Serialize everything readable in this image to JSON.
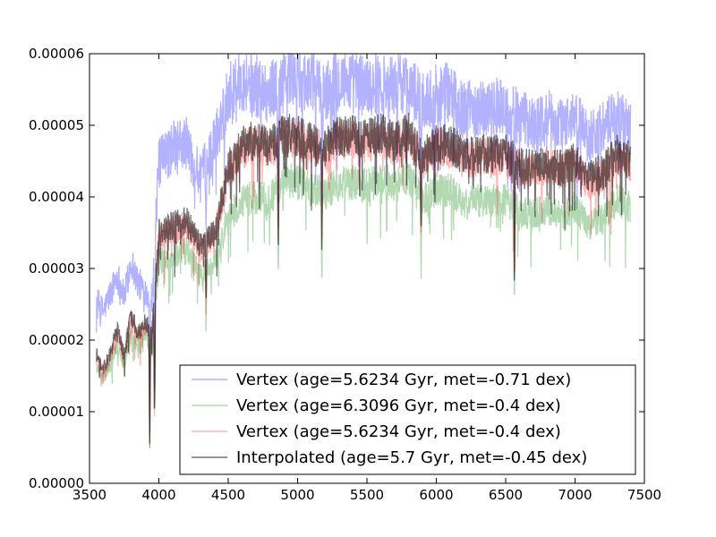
{
  "chart_data": {
    "type": "line",
    "title": "",
    "xlabel": "",
    "ylabel": "",
    "xlim": [
      3500,
      7500
    ],
    "ylim": [
      0,
      6e-05
    ],
    "x_ticks": [
      3500,
      4000,
      4500,
      5000,
      5500,
      6000,
      6500,
      7000,
      7500
    ],
    "x_tick_labels": [
      "3500",
      "4000",
      "4500",
      "5000",
      "5500",
      "6000",
      "6500",
      "7000",
      "7500"
    ],
    "y_ticks": [
      0,
      1e-05,
      2e-05,
      3e-05,
      4e-05,
      5e-05,
      6e-05
    ],
    "y_tick_labels": [
      "0.00000",
      "0.00001",
      "0.00002",
      "0.00003",
      "0.00004",
      "0.00005",
      "0.00006"
    ],
    "grid": false,
    "legend": {
      "placement": "lower-right"
    },
    "series": [
      {
        "name": "Vertex (age=5.6234 Gyr, met=-0.71 dex)",
        "color": "#0000ff",
        "alpha": 0.3,
        "x": [
          3550,
          3600,
          3650,
          3700,
          3750,
          3800,
          3850,
          3900,
          3950,
          4000,
          4100,
          4200,
          4300,
          4400,
          4500,
          4600,
          4700,
          4800,
          4900,
          5000,
          5100,
          5200,
          5300,
          5400,
          5500,
          5600,
          5700,
          5800,
          5900,
          6000,
          6100,
          6200,
          6300,
          6400,
          6500,
          6600,
          6700,
          6800,
          6900,
          7000,
          7100,
          7200,
          7300,
          7400
        ],
        "y": [
          2.55e-05,
          2.4e-05,
          2.65e-05,
          2.9e-05,
          2.6e-05,
          3.1e-05,
          2.8e-05,
          2.7e-05,
          2.6e-05,
          4.45e-05,
          4.7e-05,
          4.75e-05,
          4.25e-05,
          4.75e-05,
          5.45e-05,
          5.65e-05,
          5.55e-05,
          5.45e-05,
          5.7e-05,
          5.65e-05,
          5.6e-05,
          5.45e-05,
          5.65e-05,
          5.6e-05,
          5.55e-05,
          5.6e-05,
          5.55e-05,
          5.6e-05,
          5.3e-05,
          5.45e-05,
          5.45e-05,
          5.2e-05,
          5.25e-05,
          5.25e-05,
          5.25e-05,
          5.1e-05,
          5e-05,
          5.1e-05,
          5e-05,
          5.1e-05,
          4.85e-05,
          4.95e-05,
          5.1e-05,
          4.95e-05
        ]
      },
      {
        "name": "Vertex (age=6.3096 Gyr, met=-0.4 dex)",
        "color": "#008000",
        "alpha": 0.3,
        "x": [
          3550,
          3600,
          3650,
          3700,
          3750,
          3800,
          3850,
          3900,
          3950,
          4000,
          4100,
          4200,
          4300,
          4400,
          4500,
          4600,
          4700,
          4800,
          4900,
          5000,
          5100,
          5200,
          5300,
          5400,
          5500,
          5600,
          5700,
          5800,
          5900,
          6000,
          6100,
          6200,
          6300,
          6400,
          6500,
          6600,
          6700,
          6800,
          6900,
          7000,
          7100,
          7200,
          7300,
          7400
        ],
        "y": [
          1.65e-05,
          1.45e-05,
          1.65e-05,
          1.95e-05,
          1.65e-05,
          2.1e-05,
          1.9e-05,
          2.05e-05,
          1.9e-05,
          3.1e-05,
          3.2e-05,
          3.25e-05,
          2.9e-05,
          3.05e-05,
          3.7e-05,
          3.95e-05,
          4e-05,
          3.95e-05,
          4.25e-05,
          4.2e-05,
          4.1e-05,
          4.05e-05,
          4.2e-05,
          4.2e-05,
          4.15e-05,
          4.25e-05,
          4.15e-05,
          4.25e-05,
          3.95e-05,
          4.1e-05,
          4.1e-05,
          3.9e-05,
          3.95e-05,
          3.95e-05,
          3.95e-05,
          3.8e-05,
          3.75e-05,
          3.85e-05,
          3.75e-05,
          3.85e-05,
          3.6e-05,
          3.7e-05,
          3.95e-05,
          3.85e-05
        ]
      },
      {
        "name": "Vertex (age=5.6234 Gyr, met=-0.4 dex)",
        "color": "#ff0000",
        "alpha": 0.3,
        "x": [
          3550,
          3600,
          3650,
          3700,
          3750,
          3800,
          3850,
          3900,
          3950,
          4000,
          4100,
          4200,
          4300,
          4400,
          4500,
          4600,
          4700,
          4800,
          4900,
          5000,
          5100,
          5200,
          5300,
          5400,
          5500,
          5600,
          5700,
          5800,
          5900,
          6000,
          6100,
          6200,
          6300,
          6400,
          6500,
          6600,
          6700,
          6800,
          6900,
          7000,
          7100,
          7200,
          7300,
          7400
        ],
        "y": [
          1.75e-05,
          1.55e-05,
          1.75e-05,
          2.1e-05,
          1.75e-05,
          2.3e-05,
          2.05e-05,
          2.2e-05,
          2.05e-05,
          3.45e-05,
          3.55e-05,
          3.6e-05,
          3.25e-05,
          3.45e-05,
          4.35e-05,
          4.65e-05,
          4.75e-05,
          4.65e-05,
          4.85e-05,
          4.8e-05,
          4.7e-05,
          4.65e-05,
          4.8e-05,
          4.8e-05,
          4.75e-05,
          4.85e-05,
          4.7e-05,
          4.85e-05,
          4.5e-05,
          4.7e-05,
          4.7e-05,
          4.5e-05,
          4.55e-05,
          4.55e-05,
          4.55e-05,
          4.4e-05,
          4.35e-05,
          4.45e-05,
          4.35e-05,
          4.45e-05,
          4.2e-05,
          4.3e-05,
          4.55e-05,
          4.45e-05
        ]
      },
      {
        "name": "Interpolated (age=5.7 Gyr, met=-0.45 dex)",
        "color": "#000000",
        "alpha": 0.55,
        "x": [
          3550,
          3600,
          3650,
          3700,
          3750,
          3800,
          3850,
          3900,
          3950,
          4000,
          4100,
          4200,
          4300,
          4400,
          4500,
          4600,
          4700,
          4800,
          4900,
          5000,
          5100,
          5200,
          5300,
          5400,
          5500,
          5600,
          5700,
          5800,
          5900,
          6000,
          6100,
          6200,
          6300,
          6400,
          6500,
          6600,
          6700,
          6800,
          6900,
          7000,
          7100,
          7200,
          7300,
          7400
        ],
        "y": [
          1.8e-05,
          1.6e-05,
          1.8e-05,
          2.15e-05,
          1.8e-05,
          2.35e-05,
          2.1e-05,
          2.25e-05,
          2.1e-05,
          3.5e-05,
          3.6e-05,
          3.65e-05,
          3.3e-05,
          3.5e-05,
          4.4e-05,
          4.7e-05,
          4.8e-05,
          4.7e-05,
          4.9e-05,
          4.85e-05,
          4.75e-05,
          4.7e-05,
          4.85e-05,
          4.85e-05,
          4.8e-05,
          4.9e-05,
          4.75e-05,
          4.9e-05,
          4.55e-05,
          4.75e-05,
          4.75e-05,
          4.55e-05,
          4.6e-05,
          4.6e-05,
          4.6e-05,
          4.45e-05,
          4.4e-05,
          4.5e-05,
          4.4e-05,
          4.5e-05,
          4.25e-05,
          4.35e-05,
          4.6e-05,
          4.5e-05
        ]
      }
    ],
    "absorption_features": [
      {
        "x": 3934,
        "depth": 0.75
      },
      {
        "x": 3969,
        "depth": 0.7
      },
      {
        "x": 4340,
        "depth": 0.25
      },
      {
        "x": 4861,
        "depth": 0.35
      },
      {
        "x": 5175,
        "depth": 0.3
      },
      {
        "x": 5890,
        "depth": 0.25
      },
      {
        "x": 6563,
        "depth": 0.4
      }
    ]
  }
}
